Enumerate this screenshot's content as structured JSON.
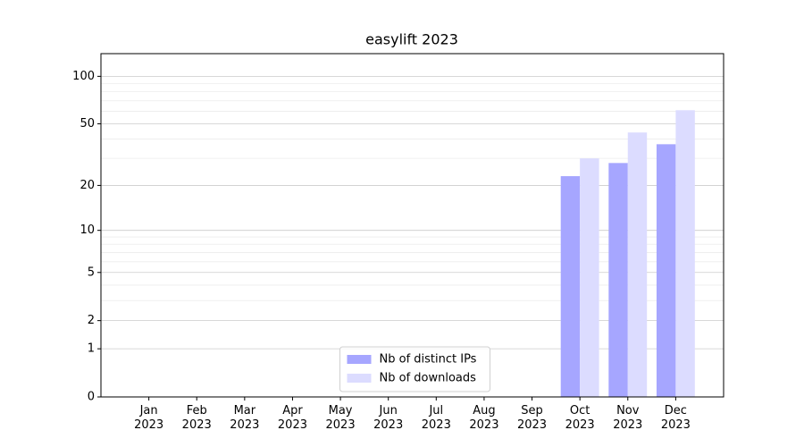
{
  "chart_data": {
    "type": "bar",
    "title": "easylift 2023",
    "categories": [
      "Jan\n2023",
      "Feb\n2023",
      "Mar\n2023",
      "Apr\n2023",
      "May\n2023",
      "Jun\n2023",
      "Jul\n2023",
      "Aug\n2023",
      "Sep\n2023",
      "Oct\n2023",
      "Nov\n2023",
      "Dec\n2023"
    ],
    "series": [
      {
        "name": "Nb of distinct IPs",
        "color": "#a6a6ff",
        "values": [
          0,
          0,
          0,
          0,
          0,
          0,
          0,
          0,
          0,
          23,
          28,
          37
        ]
      },
      {
        "name": "Nb of downloads",
        "color": "#dcdcff",
        "values": [
          0,
          0,
          0,
          0,
          0,
          0,
          0,
          0,
          0,
          30,
          44,
          61
        ]
      }
    ],
    "yscale": "symlog",
    "ylim": [
      0,
      139
    ],
    "yticks": [
      0,
      1,
      2,
      5,
      10,
      20,
      50,
      100
    ],
    "minor_yticks": [
      3,
      4,
      6,
      7,
      8,
      9,
      30,
      40,
      60,
      70,
      80,
      90
    ],
    "grid": true,
    "legend": "lower center"
  }
}
